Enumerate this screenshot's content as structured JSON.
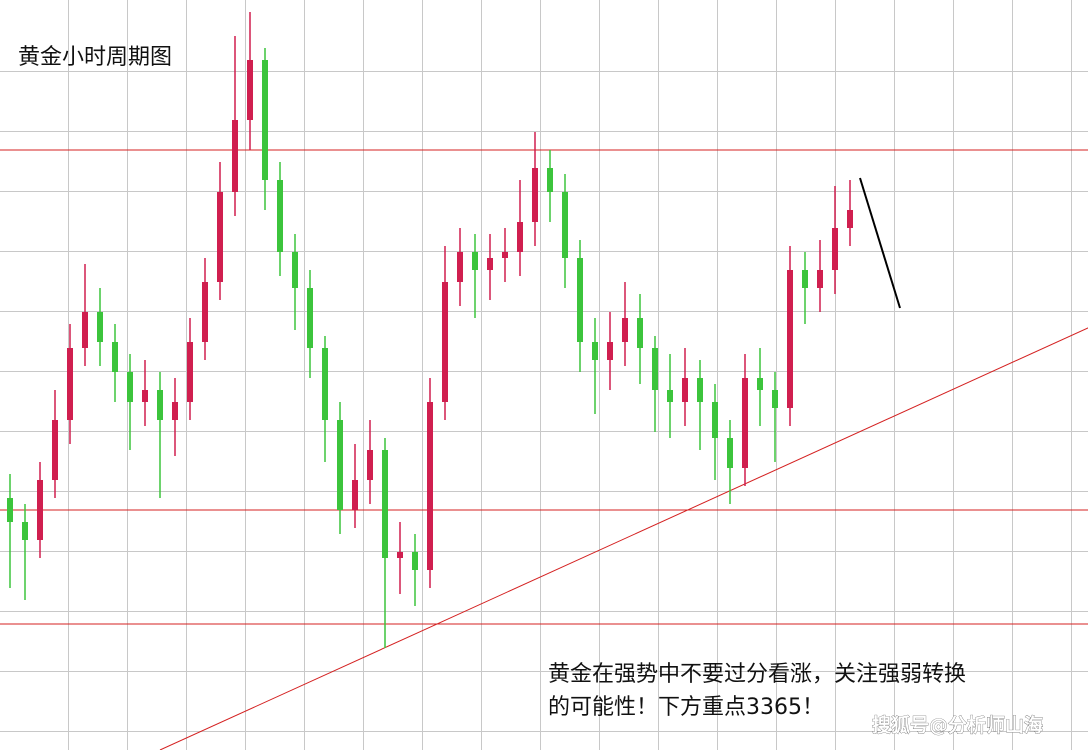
{
  "chart_data": {
    "type": "candlestick",
    "title": "黄金小时周期图",
    "annotation_lines": [
      "黄金在强势中不要过分看涨，关注强弱转换的可能性！下方重点3365！"
    ],
    "watermark": "搜狐号@分析师山海",
    "up_color": "#d01f4f",
    "down_color": "#3cc43c",
    "ylim": [
      3330,
      3455
    ],
    "open": [
      3372,
      3368,
      3365,
      3375,
      3385,
      3397,
      3403,
      3398,
      3393,
      3388,
      3390,
      3385,
      3388,
      3398,
      3408,
      3423,
      3435,
      3445,
      3425,
      3413,
      3407,
      3397,
      3385,
      3370,
      3375,
      3380,
      3362,
      3363,
      3360,
      3388,
      3408,
      3413,
      3410,
      3412,
      3413,
      3418,
      3427,
      3423,
      3412,
      3398,
      3395,
      3398,
      3402,
      3397,
      3390,
      3388,
      3392,
      3388,
      3382,
      3377,
      3392,
      3390,
      3387,
      3410,
      3407,
      3410,
      3417
    ],
    "high": [
      3376,
      3371,
      3378,
      3390,
      3401,
      3411,
      3407,
      3401,
      3396,
      3395,
      3393,
      3392,
      3402,
      3412,
      3428,
      3449,
      3453,
      3447,
      3428,
      3416,
      3410,
      3399,
      3388,
      3381,
      3385,
      3382,
      3368,
      3366,
      3392,
      3414,
      3417,
      3416,
      3416,
      3417,
      3425,
      3433,
      3430,
      3426,
      3415,
      3402,
      3403,
      3408,
      3406,
      3399,
      3396,
      3397,
      3395,
      3391,
      3385,
      3396,
      3397,
      3393,
      3414,
      3413,
      3415,
      3424,
      3425
    ],
    "low": [
      3357,
      3355,
      3362,
      3372,
      3381,
      3394,
      3394,
      3388,
      3380,
      3384,
      3372,
      3379,
      3385,
      3395,
      3405,
      3419,
      3430,
      3420,
      3409,
      3400,
      3392,
      3378,
      3366,
      3367,
      3371,
      3347,
      3356,
      3354,
      3357,
      3385,
      3404,
      3402,
      3405,
      3408,
      3409,
      3414,
      3418,
      3407,
      3393,
      3386,
      3390,
      3394,
      3391,
      3383,
      3382,
      3384,
      3380,
      3375,
      3371,
      3374,
      3384,
      3378,
      3384,
      3401,
      3403,
      3406,
      3414
    ],
    "close": [
      3368,
      3365,
      3375,
      3385,
      3397,
      3403,
      3398,
      3393,
      3388,
      3390,
      3385,
      3388,
      3398,
      3408,
      3423,
      3435,
      3445,
      3425,
      3413,
      3407,
      3397,
      3385,
      3370,
      3375,
      3380,
      3362,
      3363,
      3360,
      3388,
      3408,
      3413,
      3410,
      3412,
      3413,
      3418,
      3427,
      3423,
      3412,
      3398,
      3395,
      3398,
      3402,
      3397,
      3390,
      3388,
      3392,
      3388,
      3382,
      3377,
      3392,
      3390,
      3387,
      3410,
      3407,
      3410,
      3417,
      3420
    ],
    "hlines": [
      3430,
      3370,
      3351
    ],
    "level_color": "#d42020",
    "trendline": {
      "x": [
        10,
        72
      ],
      "y": [
        3330,
        3400.5
      ]
    }
  }
}
